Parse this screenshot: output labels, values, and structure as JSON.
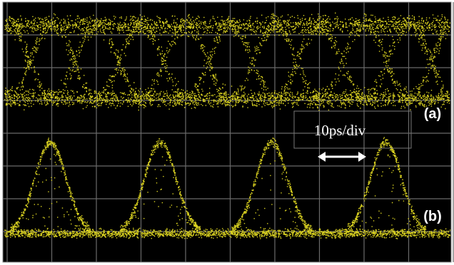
{
  "scale_label": "10ps/div",
  "trace_labels": [
    "(a)",
    "(b)"
  ]
}
